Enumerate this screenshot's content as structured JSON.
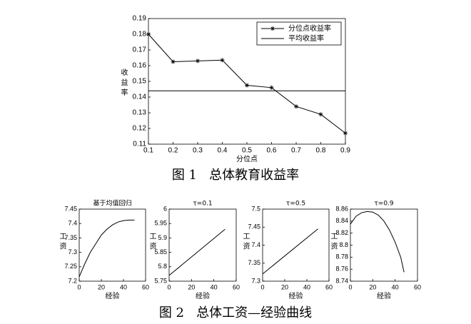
{
  "captions": [
    "图 1   总体教育收益率",
    "图 2   总体工资—经验曲线"
  ],
  "chart_data": [
    {
      "type": "line",
      "xlabel": "分位点",
      "ylabel": "收益率",
      "x": [
        0.1,
        0.2,
        0.3,
        0.4,
        0.5,
        0.6,
        0.7,
        0.8,
        0.9
      ],
      "series": [
        {
          "name": "分位点收益率",
          "color": "#000000",
          "marker": "asterisk",
          "values": [
            0.18,
            0.1625,
            0.163,
            0.1635,
            0.1475,
            0.146,
            0.134,
            0.129,
            0.117
          ]
        },
        {
          "name": "平均收益率",
          "color": "#000000",
          "values": [
            0.144,
            0.144,
            0.144,
            0.144,
            0.144,
            0.144,
            0.144,
            0.144,
            0.144
          ]
        }
      ],
      "xlim": [
        0.1,
        0.9
      ],
      "xticks": [
        0.1,
        0.2,
        0.3,
        0.4,
        0.5,
        0.6,
        0.7,
        0.8,
        0.9
      ],
      "ylim": [
        0.11,
        0.19
      ],
      "yticks": [
        0.11,
        0.12,
        0.13,
        0.14,
        0.15,
        0.16,
        0.17,
        0.18,
        0.19
      ],
      "legend": "upper right"
    },
    {
      "type": "line",
      "title": "基于均值回归",
      "xlabel": "经验",
      "ylabel": "工资",
      "x": [
        0,
        5,
        10,
        15,
        20,
        25,
        30,
        35,
        40,
        45,
        50
      ],
      "series": [
        {
          "color": "#000000",
          "values": [
            7.215,
            7.26,
            7.3,
            7.33,
            7.36,
            7.38,
            7.395,
            7.405,
            7.41,
            7.412,
            7.412
          ]
        }
      ],
      "xlim": [
        0,
        60
      ],
      "xticks": [
        0,
        20,
        40,
        60
      ],
      "ylim": [
        7.2,
        7.45
      ],
      "yticks": [
        7.2,
        7.25,
        7.3,
        7.35,
        7.4,
        7.45
      ]
    },
    {
      "type": "line",
      "title": "τ=0.1",
      "xlabel": "经验",
      "ylabel": "工资",
      "x": [
        0,
        50
      ],
      "series": [
        {
          "color": "#000000",
          "values": [
            5.77,
            5.93
          ]
        }
      ],
      "xlim": [
        0,
        60
      ],
      "xticks": [
        0,
        20,
        40,
        60
      ],
      "ylim": [
        5.75,
        6
      ],
      "yticks": [
        5.75,
        5.8,
        5.85,
        5.9,
        5.95,
        6
      ]
    },
    {
      "type": "line",
      "title": "τ=0.5",
      "xlabel": "经验",
      "ylabel": "工资",
      "x": [
        0,
        50
      ],
      "series": [
        {
          "color": "#000000",
          "values": [
            7.32,
            7.445
          ]
        }
      ],
      "xlim": [
        0,
        60
      ],
      "xticks": [
        0,
        20,
        40,
        60
      ],
      "ylim": [
        7.3,
        7.5
      ],
      "yticks": [
        7.3,
        7.35,
        7.4,
        7.45,
        7.5
      ]
    },
    {
      "type": "line",
      "title": "τ=0.9",
      "xlabel": "经验",
      "ylabel": "工资",
      "x": [
        0,
        5,
        10,
        15,
        20,
        25,
        30,
        35,
        40,
        45,
        48
      ],
      "series": [
        {
          "color": "#000000",
          "values": [
            8.835,
            8.848,
            8.854,
            8.856,
            8.855,
            8.85,
            8.84,
            8.825,
            8.805,
            8.78,
            8.755
          ]
        }
      ],
      "xlim": [
        0,
        60
      ],
      "xticks": [
        0,
        20,
        40,
        60
      ],
      "ylim": [
        8.74,
        8.86
      ],
      "yticks": [
        8.74,
        8.76,
        8.78,
        8.8,
        8.82,
        8.84,
        8.86
      ]
    }
  ]
}
